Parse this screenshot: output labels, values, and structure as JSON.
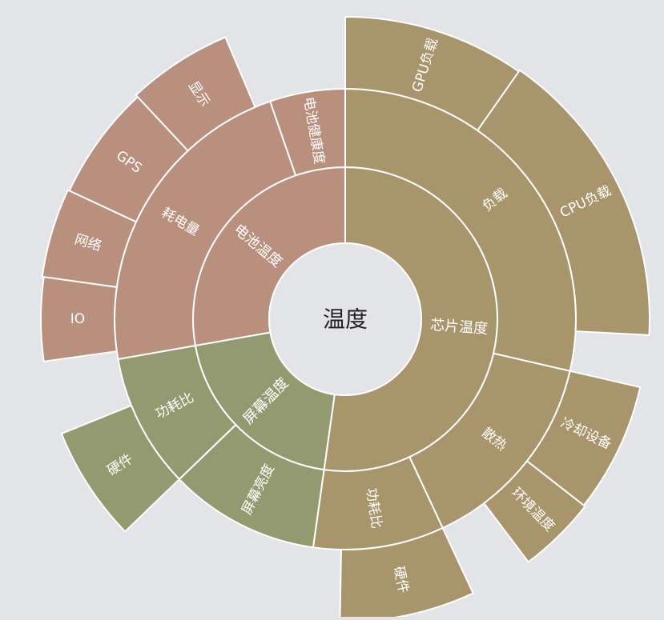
{
  "chart_data": {
    "type": "sunburst",
    "colors": {
      "chip": "#a8956b",
      "battery": "#b98f7e",
      "screen": "#949a70",
      "center": "#e3e4e8",
      "stroke": "#ffffff",
      "text": "#ffffff",
      "center_text": "#222222",
      "background": "#e3e4e8"
    },
    "root": {
      "name": "温度"
    },
    "tree": [
      {
        "name": "芯片温度",
        "color": "chip",
        "children": [
          {
            "name": "负载",
            "children": [
              {
                "name": "GPU负载"
              },
              {
                "name": "CPU负载"
              }
            ]
          },
          {
            "name": "散热",
            "children": [
              {
                "name": "冷却设备"
              },
              {
                "name": "环境温度"
              }
            ]
          },
          {
            "name": "功耗比",
            "children": [
              {
                "name": "硬件"
              }
            ]
          }
        ]
      },
      {
        "name": "屏幕温度",
        "color": "screen",
        "children": [
          {
            "name": "屏幕亮度",
            "children": []
          },
          {
            "name": "功耗比",
            "children": [
              {
                "name": "硬件"
              }
            ]
          }
        ]
      },
      {
        "name": "电池温度",
        "color": "battery",
        "children": [
          {
            "name": "耗电量",
            "children": [
              {
                "name": "IO"
              },
              {
                "name": "网络"
              },
              {
                "name": "GPS"
              },
              {
                "name": "显示"
              }
            ]
          },
          {
            "name": "电池健康度",
            "children": []
          }
        ]
      }
    ]
  }
}
